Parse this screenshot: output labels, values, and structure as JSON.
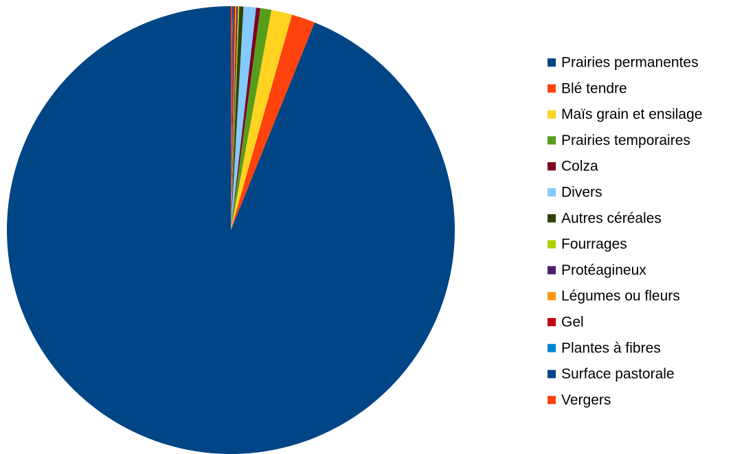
{
  "chart_data": {
    "type": "pie",
    "categories": [
      "Prairies permanentes",
      "Blé tendre",
      "Maïs grain et ensilage",
      "Prairies temporaires",
      "Colza",
      "Divers",
      "Autres céréales",
      "Fourrages",
      "Protéagineux",
      "Légumes ou fleurs",
      "Gel",
      "Plantes à fibres",
      "Surface pastorale",
      "Vergers"
    ],
    "values": [
      93.8,
      1.7,
      1.5,
      0.8,
      0.3,
      0.9,
      0.3,
      0.1,
      0.1,
      0.1,
      0.1,
      0.05,
      0.05,
      0.1
    ],
    "colors": [
      "#004586",
      "#ff420e",
      "#ffd320",
      "#579d1c",
      "#7e0021",
      "#83caff",
      "#314004",
      "#aecf00",
      "#4b1f6f",
      "#ff950e",
      "#c5000b",
      "#0084d1",
      "#004586",
      "#ff420e"
    ],
    "legend": "right"
  }
}
